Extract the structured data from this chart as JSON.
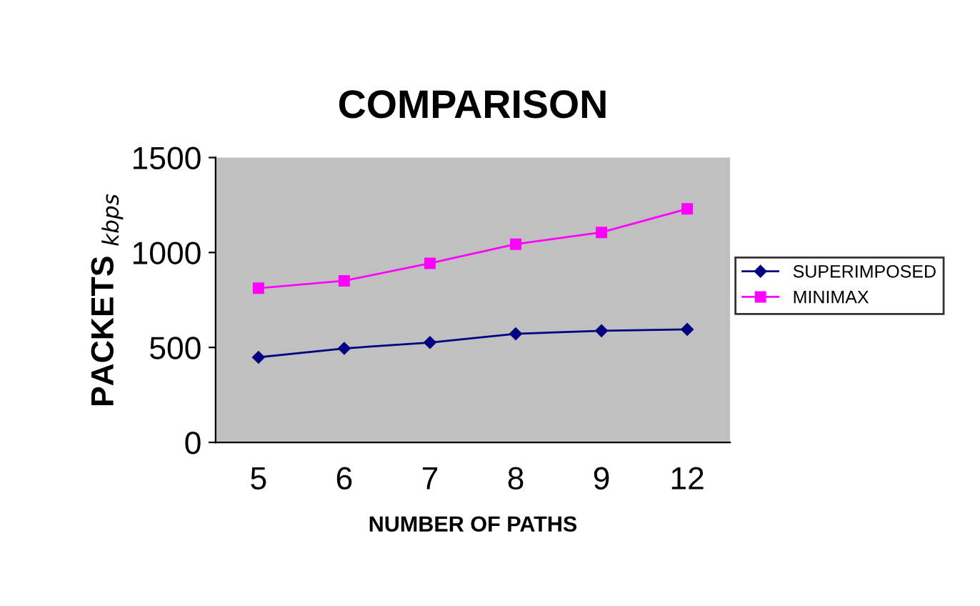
{
  "chart_data": {
    "type": "line",
    "title": "COMPARISON",
    "xlabel": "NUMBER OF PATHS",
    "ylabel": "PACKETS $_{kbps}$",
    "categories": [
      "5",
      "6",
      "7",
      "8",
      "9",
      "12"
    ],
    "series": [
      {
        "name": "SUPERIMPOSED",
        "color": "#000080",
        "marker": "diamond",
        "values": [
          448,
          495,
          526,
          572,
          588,
          595
        ]
      },
      {
        "name": "MINIMAX",
        "color": "#ff00ff",
        "marker": "square",
        "values": [
          812,
          851,
          943,
          1044,
          1106,
          1230
        ]
      }
    ],
    "ylim": [
      0,
      1500
    ],
    "yticks": [
      0,
      500,
      1000,
      1500
    ],
    "grid": false,
    "legend": "right",
    "line_style": "solid"
  }
}
